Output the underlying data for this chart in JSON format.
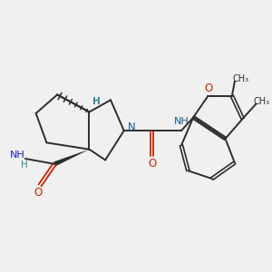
{
  "bg_color": "#f0f0f0",
  "bond_color": "#2d2d2d",
  "N_color": "#1a5a8a",
  "O_color": "#cc2200",
  "NH2_color": "#2222cc",
  "H_color": "#2d8a8a",
  "figsize": [
    3.0,
    3.0
  ],
  "dpi": 100,
  "xlim": [
    0,
    10
  ],
  "ylim": [
    0,
    10
  ]
}
